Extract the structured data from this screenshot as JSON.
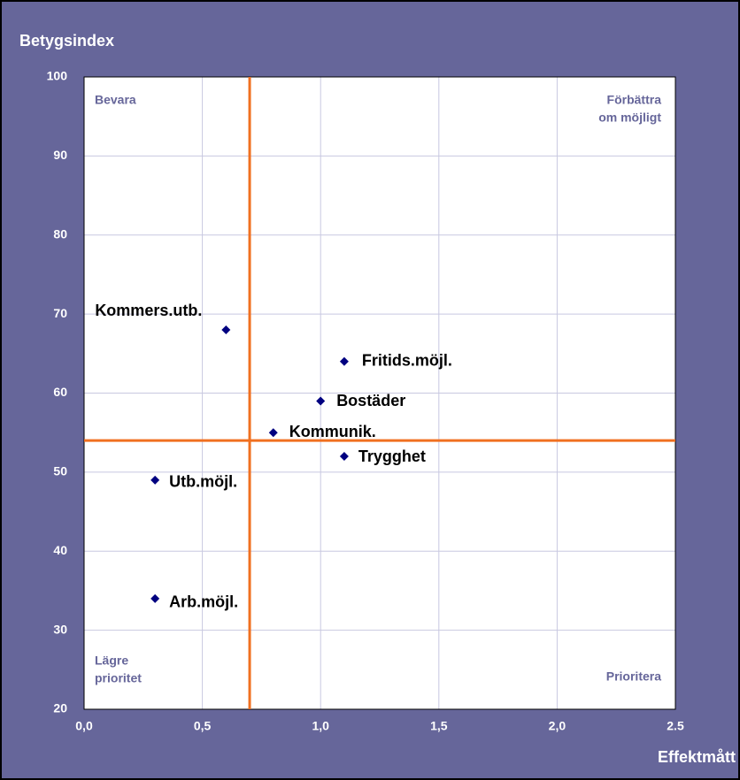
{
  "chart_data": {
    "type": "scatter",
    "x_label": "Effektmått",
    "y_label": "Betygsindex",
    "x": [
      0.6,
      1.1,
      1.0,
      0.8,
      1.1,
      0.3,
      0.3
    ],
    "values": [
      68,
      64,
      59,
      55,
      52,
      49,
      34
    ],
    "point_labels": [
      "Kommers.utb.",
      "Fritids.möjl.",
      "Bostäder",
      "Kommunik.",
      "Trygghet",
      "Utb.möjl.",
      "Arb.möjl."
    ],
    "color": "#000080",
    "xlim": [
      0,
      2.5
    ],
    "ylim": [
      20,
      100
    ],
    "xticks": [
      {
        "value": 0,
        "label": "0,0"
      },
      {
        "value": 0.5,
        "label": "0,5"
      },
      {
        "value": 1,
        "label": "1,0"
      },
      {
        "value": 1.5,
        "label": "1,5"
      },
      {
        "value": 2,
        "label": "2,0"
      },
      2.5
    ],
    "yticks": [
      20,
      30,
      40,
      50,
      60,
      70,
      80,
      90,
      100
    ],
    "grid": true,
    "reference_lines": {
      "x": 0.7,
      "y": 54,
      "color": "#f07020"
    },
    "quadrant_labels": {
      "top_left": [
        "Bevara"
      ],
      "top_right": [
        "Förbättra",
        "om möjligt"
      ],
      "bottom_left": [
        "Lägre",
        "prioritet"
      ],
      "bottom_right": [
        "Prioritera"
      ]
    }
  }
}
